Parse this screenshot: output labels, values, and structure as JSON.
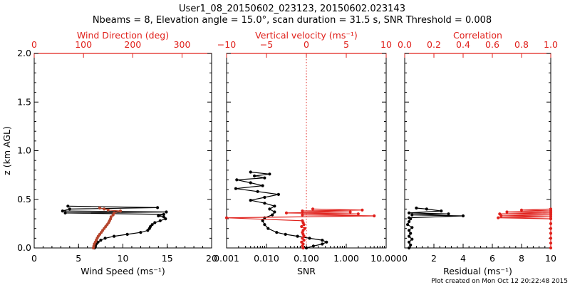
{
  "header": {
    "title_line1": "User1_08_20150602_023123, 20150602.023143",
    "title_line2": "Nbeams = 8, Elevation angle = 15.0°, scan duration = 31.5 s, SNR Threshold = 0.008"
  },
  "footer": {
    "created": "Plot created on Mon Oct 12 20:22:48 2015"
  },
  "colors": {
    "primary": "#000000",
    "secondary": "#e0201b",
    "secondary_points": "#b5442c"
  },
  "chart_data": [
    {
      "type": "line",
      "panel": "wind",
      "ylabel": "z (km AGL)",
      "ylim": [
        0,
        2.0
      ],
      "yticks": [
        "0.0",
        "0.5",
        "1.0",
        "1.5",
        "2.0"
      ],
      "xlabel": "Wind Speed (ms⁻¹)",
      "xlim": [
        0,
        20
      ],
      "xticks": [
        "0",
        "5",
        "10",
        "15",
        "20"
      ],
      "top_xlabel": "Wind Direction (deg)",
      "top_xlim": [
        0,
        360
      ],
      "top_xticks": [
        "0",
        "100",
        "200",
        "300"
      ],
      "grid": false,
      "series": [
        {
          "role": "wind speed",
          "axis": "bottom",
          "color": "#000000",
          "points": [
            [
              6.8,
              0.0
            ],
            [
              6.9,
              0.02
            ],
            [
              7.0,
              0.04
            ],
            [
              7.2,
              0.06
            ],
            [
              7.5,
              0.08
            ],
            [
              8.0,
              0.1
            ],
            [
              9.0,
              0.12
            ],
            [
              10.5,
              0.14
            ],
            [
              12.0,
              0.16
            ],
            [
              12.8,
              0.18
            ],
            [
              13.0,
              0.2
            ],
            [
              13.1,
              0.22
            ],
            [
              13.3,
              0.24
            ],
            [
              13.6,
              0.26
            ],
            [
              14.2,
              0.28
            ],
            [
              14.8,
              0.3
            ],
            [
              14.6,
              0.32
            ],
            [
              14.0,
              0.33
            ],
            [
              14.6,
              0.345
            ],
            [
              3.5,
              0.36
            ],
            [
              14.9,
              0.37
            ],
            [
              3.2,
              0.38
            ],
            [
              4.0,
              0.4
            ],
            [
              13.9,
              0.415
            ],
            [
              3.8,
              0.43
            ]
          ]
        },
        {
          "role": "wind direction",
          "axis": "top",
          "color": "#b5442c",
          "points": [
            [
              120,
              0.0
            ],
            [
              121,
              0.02
            ],
            [
              122,
              0.04
            ],
            [
              124,
              0.06
            ],
            [
              126,
              0.08
            ],
            [
              128,
              0.1
            ],
            [
              130,
              0.12
            ],
            [
              133,
              0.14
            ],
            [
              136,
              0.16
            ],
            [
              139,
              0.18
            ],
            [
              142,
              0.2
            ],
            [
              145,
              0.22
            ],
            [
              148,
              0.24
            ],
            [
              151,
              0.26
            ],
            [
              153,
              0.28
            ],
            [
              155,
              0.3
            ],
            [
              156,
              0.32
            ],
            [
              160,
              0.34
            ],
            [
              162,
              0.36
            ],
            [
              175,
              0.38
            ],
            [
              150,
              0.39
            ],
            [
              142,
              0.4
            ],
            [
              133,
              0.41
            ]
          ]
        }
      ]
    },
    {
      "type": "line",
      "panel": "snr",
      "ylim": [
        0,
        2.0
      ],
      "xlabel": "SNR",
      "xlim": [
        0.001,
        10
      ],
      "xscale": "log",
      "xticks": [
        "0.001",
        "0.010",
        "0.100",
        "1.000",
        "10.000"
      ],
      "top_xlabel": "Vertical velocity (ms⁻¹)",
      "top_xlim": [
        -10,
        10
      ],
      "top_xticks": [
        "−10",
        "−5",
        "0",
        "5",
        "10"
      ],
      "reference_line": {
        "axis": "top",
        "value": 0,
        "style": "dotted"
      },
      "grid": false,
      "series": [
        {
          "role": "SNR",
          "axis": "bottom",
          "color": "#000000",
          "points": [
            [
              0.1,
              0.0
            ],
            [
              0.15,
              0.02
            ],
            [
              0.25,
              0.04
            ],
            [
              0.32,
              0.06
            ],
            [
              0.25,
              0.08
            ],
            [
              0.12,
              0.1
            ],
            [
              0.06,
              0.12
            ],
            [
              0.03,
              0.14
            ],
            [
              0.018,
              0.16
            ],
            [
              0.011,
              0.2
            ],
            [
              0.009,
              0.24
            ],
            [
              0.008,
              0.28
            ],
            [
              0.009,
              0.31
            ],
            [
              0.014,
              0.34
            ],
            [
              0.016,
              0.37
            ],
            [
              0.012,
              0.4
            ],
            [
              0.016,
              0.43
            ],
            [
              0.009,
              0.46
            ],
            [
              0.004,
              0.49
            ],
            [
              0.009,
              0.52
            ],
            [
              0.02,
              0.55
            ],
            [
              0.006,
              0.58
            ],
            [
              0.0017,
              0.61
            ],
            [
              0.008,
              0.64
            ],
            [
              0.004,
              0.67
            ],
            [
              0.0018,
              0.7
            ],
            [
              0.009,
              0.72
            ],
            [
              0.005,
              0.74
            ],
            [
              0.012,
              0.76
            ],
            [
              0.004,
              0.78
            ]
          ]
        },
        {
          "role": "vertical velocity",
          "axis": "top",
          "color": "#e0201b",
          "points": [
            [
              -0.4,
              0.0
            ],
            [
              -0.5,
              0.02
            ],
            [
              -0.4,
              0.04
            ],
            [
              -0.6,
              0.06
            ],
            [
              -0.3,
              0.08
            ],
            [
              -0.5,
              0.1
            ],
            [
              -0.3,
              0.12
            ],
            [
              -0.4,
              0.14
            ],
            [
              -0.5,
              0.16
            ],
            [
              -0.4,
              0.18
            ],
            [
              -0.2,
              0.2
            ],
            [
              -0.6,
              0.22
            ],
            [
              -0.3,
              0.24
            ],
            [
              -0.4,
              0.26
            ],
            [
              -0.5,
              0.28
            ],
            [
              -10,
              0.31
            ],
            [
              8.5,
              0.33
            ],
            [
              -0.5,
              0.34
            ],
            [
              6.5,
              0.35
            ],
            [
              -2.5,
              0.36
            ],
            [
              5.5,
              0.37
            ],
            [
              -0.5,
              0.38
            ],
            [
              7.0,
              0.39
            ],
            [
              0.8,
              0.4
            ]
          ]
        }
      ]
    },
    {
      "type": "line",
      "panel": "residual",
      "ylim": [
        0,
        2.0
      ],
      "xlabel": "Residual (ms⁻¹)",
      "xlim": [
        0,
        10
      ],
      "xticks": [
        "0",
        "2",
        "4",
        "6",
        "8",
        "10"
      ],
      "top_xlabel": "Correlation",
      "top_xlim": [
        0.0,
        1.0
      ],
      "top_xticks": [
        "0.0",
        "0.2",
        "0.4",
        "0.6",
        "0.8",
        "1.0"
      ],
      "grid": false,
      "series": [
        {
          "role": "residual",
          "axis": "bottom",
          "color": "#000000",
          "points": [
            [
              0.3,
              0.0
            ],
            [
              0.4,
              0.03
            ],
            [
              0.3,
              0.06
            ],
            [
              0.5,
              0.09
            ],
            [
              0.3,
              0.12
            ],
            [
              0.4,
              0.15
            ],
            [
              0.3,
              0.18
            ],
            [
              0.5,
              0.21
            ],
            [
              0.2,
              0.24
            ],
            [
              0.3,
              0.27
            ],
            [
              0.4,
              0.3
            ],
            [
              0.3,
              0.31
            ],
            [
              4.0,
              0.33
            ],
            [
              0.5,
              0.34
            ],
            [
              3.0,
              0.35
            ],
            [
              0.3,
              0.36
            ],
            [
              2.5,
              0.38
            ],
            [
              1.5,
              0.4
            ],
            [
              0.8,
              0.41
            ]
          ]
        },
        {
          "role": "correlation",
          "axis": "top",
          "color": "#e0201b",
          "points": [
            [
              1.0,
              0.0
            ],
            [
              1.0,
              0.05
            ],
            [
              1.0,
              0.1
            ],
            [
              1.0,
              0.15
            ],
            [
              1.0,
              0.2
            ],
            [
              1.0,
              0.25
            ],
            [
              1.0,
              0.3
            ],
            [
              0.64,
              0.31
            ],
            [
              1.0,
              0.32
            ],
            [
              0.66,
              0.33
            ],
            [
              1.0,
              0.34
            ],
            [
              0.65,
              0.35
            ],
            [
              1.0,
              0.36
            ],
            [
              0.7,
              0.37
            ],
            [
              1.0,
              0.38
            ],
            [
              0.8,
              0.39
            ],
            [
              1.0,
              0.4
            ]
          ]
        }
      ]
    }
  ]
}
